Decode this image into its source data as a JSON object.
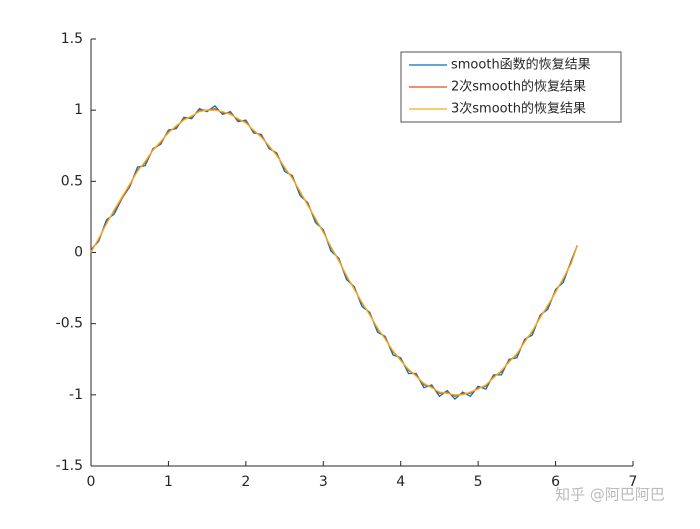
{
  "chart_data": {
    "type": "line",
    "x": [
      0,
      0.1,
      0.2,
      0.3,
      0.4,
      0.5,
      0.6,
      0.7,
      0.8,
      0.9,
      1.0,
      1.1,
      1.2,
      1.3,
      1.4,
      1.5,
      1.6,
      1.7,
      1.8,
      1.9,
      2.0,
      2.1,
      2.2,
      2.3,
      2.4,
      2.5,
      2.6,
      2.7,
      2.8,
      2.9,
      3.0,
      3.1,
      3.2,
      3.3,
      3.4,
      3.5,
      3.6,
      3.7,
      3.8,
      3.9,
      4.0,
      4.1,
      4.2,
      4.3,
      4.4,
      4.5,
      4.6,
      4.7,
      4.8,
      4.9,
      5.0,
      5.1,
      5.2,
      5.3,
      5.4,
      5.5,
      5.6,
      5.7,
      5.8,
      5.9,
      6.0,
      6.1,
      6.2,
      6.28
    ],
    "series": [
      {
        "name": "smooth函数的恢复结果",
        "color": "#0072BD",
        "values": [
          0.02,
          0.08,
          0.23,
          0.27,
          0.38,
          0.46,
          0.6,
          0.61,
          0.73,
          0.76,
          0.86,
          0.87,
          0.95,
          0.94,
          1.01,
          0.99,
          1.03,
          0.97,
          0.99,
          0.92,
          0.93,
          0.84,
          0.83,
          0.73,
          0.7,
          0.57,
          0.54,
          0.4,
          0.35,
          0.21,
          0.16,
          0.01,
          -0.04,
          -0.19,
          -0.24,
          -0.38,
          -0.42,
          -0.56,
          -0.59,
          -0.72,
          -0.74,
          -0.85,
          -0.85,
          -0.95,
          -0.93,
          -1.01,
          -0.97,
          -1.03,
          -0.98,
          -1.01,
          -0.94,
          -0.96,
          -0.86,
          -0.86,
          -0.75,
          -0.74,
          -0.61,
          -0.58,
          -0.44,
          -0.4,
          -0.26,
          -0.21,
          -0.06,
          0.05
        ]
      },
      {
        "name": "2次smooth的恢复结果",
        "color": "#D95319",
        "values": [
          0.01,
          0.09,
          0.21,
          0.29,
          0.38,
          0.47,
          0.58,
          0.63,
          0.72,
          0.77,
          0.85,
          0.88,
          0.94,
          0.95,
          1.0,
          1.0,
          1.01,
          0.98,
          0.98,
          0.93,
          0.92,
          0.85,
          0.82,
          0.74,
          0.69,
          0.59,
          0.53,
          0.42,
          0.34,
          0.23,
          0.15,
          0.03,
          -0.05,
          -0.17,
          -0.25,
          -0.36,
          -0.43,
          -0.54,
          -0.6,
          -0.7,
          -0.75,
          -0.83,
          -0.86,
          -0.93,
          -0.94,
          -0.99,
          -0.98,
          -1.01,
          -0.99,
          -0.99,
          -0.95,
          -0.94,
          -0.87,
          -0.84,
          -0.76,
          -0.72,
          -0.62,
          -0.56,
          -0.45,
          -0.38,
          -0.27,
          -0.19,
          -0.07,
          0.05
        ]
      },
      {
        "name": "3次smooth的恢复结果",
        "color": "#EDB120",
        "values": [
          0.0,
          0.1,
          0.2,
          0.3,
          0.39,
          0.48,
          0.57,
          0.64,
          0.72,
          0.78,
          0.84,
          0.89,
          0.93,
          0.96,
          0.99,
          1.0,
          1.0,
          0.99,
          0.97,
          0.94,
          0.91,
          0.86,
          0.81,
          0.75,
          0.68,
          0.6,
          0.52,
          0.43,
          0.33,
          0.24,
          0.14,
          0.04,
          -0.06,
          -0.16,
          -0.26,
          -0.35,
          -0.44,
          -0.53,
          -0.61,
          -0.69,
          -0.76,
          -0.82,
          -0.87,
          -0.92,
          -0.95,
          -0.98,
          -0.99,
          -1.0,
          -1.0,
          -0.98,
          -0.96,
          -0.93,
          -0.88,
          -0.83,
          -0.77,
          -0.71,
          -0.63,
          -0.55,
          -0.46,
          -0.37,
          -0.28,
          -0.18,
          -0.08,
          0.05
        ]
      }
    ],
    "xlim": [
      0,
      7
    ],
    "xticks": [
      0,
      1,
      2,
      3,
      4,
      5,
      6,
      7
    ],
    "ylim": [
      -1.5,
      1.5
    ],
    "yticks": [
      -1.5,
      -1,
      -0.5,
      0,
      0.5,
      1,
      1.5
    ],
    "legend": "upper-right",
    "watermark": "知乎 @阿巴阿巴"
  }
}
